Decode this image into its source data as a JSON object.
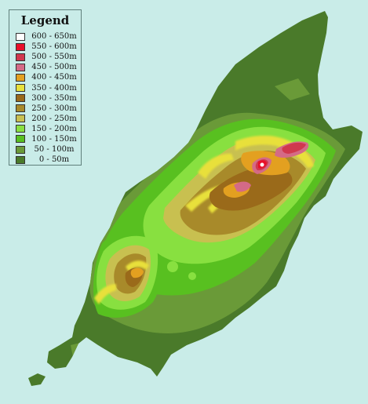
{
  "legend": {
    "title": "Legend",
    "items": [
      {
        "label": "600 - 650m",
        "color": "#ffffff"
      },
      {
        "label": "550 - 600m",
        "color": "#e8102a"
      },
      {
        "label": "500 - 550m",
        "color": "#d0384e"
      },
      {
        "label": "450 - 500m",
        "color": "#d46a86"
      },
      {
        "label": "400 - 450m",
        "color": "#e3a020"
      },
      {
        "label": "350 - 400m",
        "color": "#e8e03a"
      },
      {
        "label": "300 - 350m",
        "color": "#9a6a1a"
      },
      {
        "label": "250 - 300m",
        "color": "#a88a2a"
      },
      {
        "label": "200 - 250m",
        "color": "#c8c050"
      },
      {
        "label": "150 - 200m",
        "color": "#88e040"
      },
      {
        "label": "100 - 150m",
        "color": "#58c020"
      },
      {
        "label": "50 - 100m",
        "color": "#6a9a38"
      },
      {
        "label": "0 - 50m",
        "color": "#4a7a2a"
      }
    ]
  },
  "colors": {
    "sea": "#c9ece8"
  }
}
